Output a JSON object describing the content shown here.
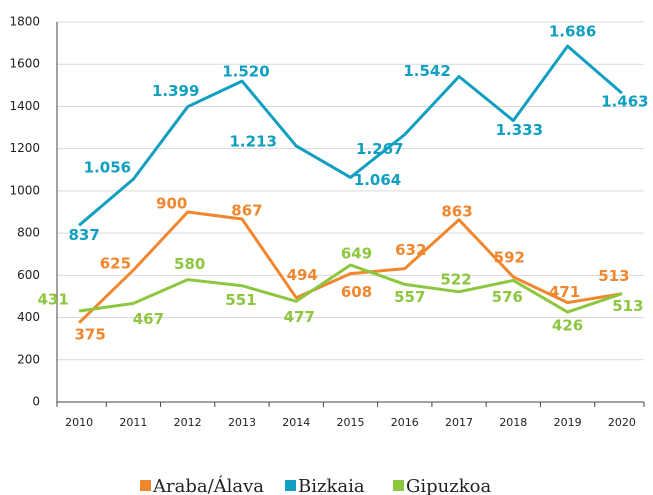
{
  "chart_data": {
    "type": "line",
    "categories": [
      "2010",
      "2011",
      "2012",
      "2013",
      "2014",
      "2015",
      "2016",
      "2017",
      "2018",
      "2019",
      "2020"
    ],
    "series": [
      {
        "name": "Araba/Álava",
        "color": "#f0872e",
        "values": [
          375,
          625,
          900,
          867,
          494,
          608,
          632,
          863,
          592,
          471,
          513
        ],
        "value_labels": [
          "375",
          "625",
          "900",
          "867",
          "494",
          "608",
          "632",
          "863",
          "592",
          "471",
          "513"
        ]
      },
      {
        "name": "Bizkaia",
        "color": "#109fc0",
        "values": [
          837,
          1056,
          1399,
          1520,
          1213,
          1064,
          1267,
          1542,
          1333,
          1686,
          1463
        ],
        "value_labels": [
          "837",
          "1.056",
          "1.399",
          "1.520",
          "1.213",
          "1.064",
          "1.267",
          "1.542",
          "1.333",
          "1.686",
          "1.463"
        ]
      },
      {
        "name": "Gipuzkoa",
        "color": "#8dc63f",
        "values": [
          431,
          467,
          580,
          551,
          477,
          649,
          557,
          522,
          576,
          426,
          513
        ],
        "value_labels": [
          "431",
          "467",
          "580",
          "551",
          "477",
          "649",
          "557",
          "522",
          "576",
          "426",
          "513"
        ]
      }
    ],
    "ylim": [
      0,
      1800
    ],
    "yticks": [
      0,
      200,
      400,
      600,
      800,
      1000,
      1200,
      1400,
      1600,
      1800
    ],
    "grid": true,
    "legend": "bottom"
  }
}
